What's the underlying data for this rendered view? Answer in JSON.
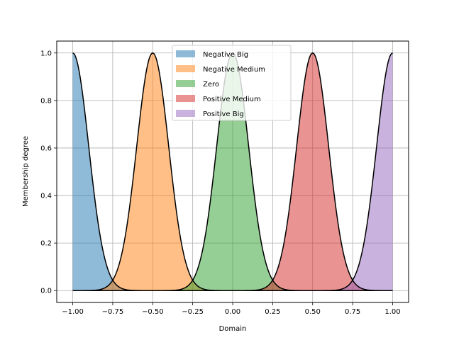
{
  "chart_data": {
    "type": "area",
    "title": "",
    "xlabel": "Domain",
    "ylabel": "Membership degree",
    "xlim": [
      -1.1,
      1.1
    ],
    "ylim": [
      -0.05,
      1.05
    ],
    "xticks": [
      -1.0,
      -0.75,
      -0.5,
      -0.25,
      0.0,
      0.25,
      0.5,
      0.75,
      1.0
    ],
    "xtick_labels": [
      "−1.00",
      "−0.75",
      "−0.50",
      "−0.25",
      "0.00",
      "0.25",
      "0.50",
      "0.75",
      "1.00"
    ],
    "yticks": [
      0.0,
      0.2,
      0.4,
      0.6,
      0.8,
      1.0
    ],
    "ytick_labels": [
      "0.0",
      "0.2",
      "0.4",
      "0.6",
      "0.8",
      "1.0"
    ],
    "grid": true,
    "legend_position": "top-center",
    "domain": [
      -1.0,
      1.0
    ],
    "series": [
      {
        "name": "Negative Big",
        "mean": -1.0,
        "sigma": 0.1,
        "color": "#1f77b4"
      },
      {
        "name": "Negative Medium",
        "mean": -0.5,
        "sigma": 0.1,
        "color": "#ff7f0e"
      },
      {
        "name": "Zero",
        "mean": 0.0,
        "sigma": 0.1,
        "color": "#2ca02c"
      },
      {
        "name": "Positive Medium",
        "mean": 0.5,
        "sigma": 0.1,
        "color": "#d62728"
      },
      {
        "name": "Positive Big",
        "mean": 1.0,
        "sigma": 0.1,
        "color": "#9467bd"
      }
    ]
  }
}
